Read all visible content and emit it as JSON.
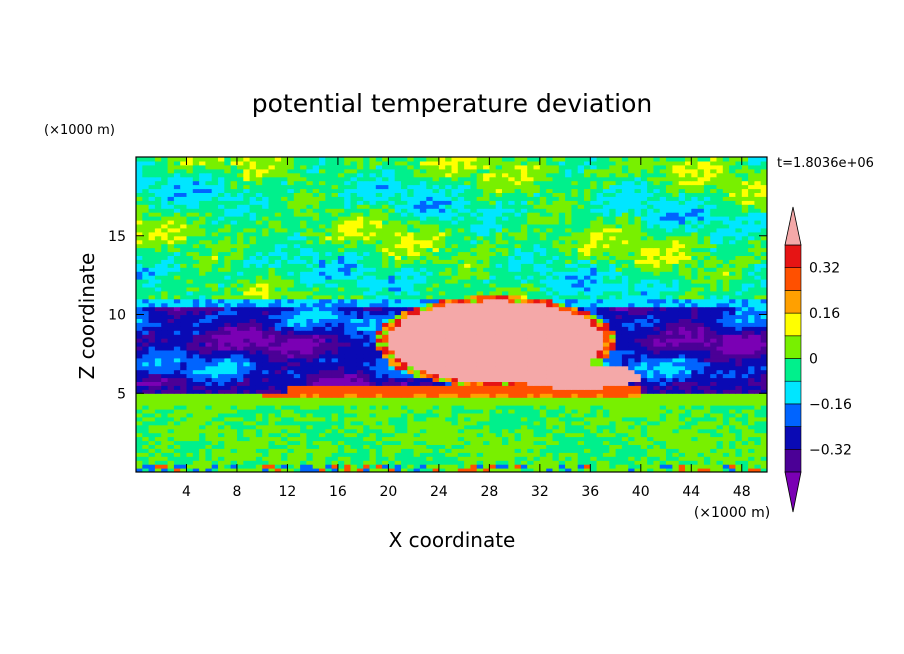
{
  "chart_data": {
    "type": "heatmap",
    "title": "potential temperature deviation",
    "xlabel": "X coordinate",
    "ylabel": "Z coordinate",
    "x_unit": "(×1000 m)",
    "y_unit": "(×1000 m)",
    "time_label": "t=1.8036e+06",
    "xlim": [
      0,
      50
    ],
    "ylim": [
      0,
      20
    ],
    "x_ticks": [
      4,
      8,
      12,
      16,
      20,
      24,
      28,
      32,
      36,
      40,
      44,
      48
    ],
    "y_ticks": [
      5,
      10,
      15
    ],
    "colorbar": {
      "levels": [
        -0.4,
        -0.32,
        -0.24,
        -0.16,
        -0.08,
        0,
        0.08,
        0.16,
        0.24,
        0.32,
        0.4
      ],
      "labeled_levels": [
        0.32,
        0.16,
        0,
        -0.16,
        -0.32
      ],
      "labels": [
        "0.32",
        "0.16",
        "0",
        "−0.16",
        "−0.32"
      ],
      "colors": [
        "#7a00b4",
        "#4b0096",
        "#0a0ab4",
        "#0064ff",
        "#00e6ff",
        "#00f08c",
        "#78f000",
        "#ffff00",
        "#ffa000",
        "#ff5000",
        "#e61414",
        "#f4a8a8"
      ]
    },
    "bands": [
      {
        "z": [
          0,
          0.5
        ],
        "level": "noise-low"
      },
      {
        "z": [
          0.5,
          4.2
        ],
        "level": "mixed-positive-small"
      },
      {
        "z": [
          4.2,
          5.2
        ],
        "level": "orange-red-positive"
      },
      {
        "z": [
          5.2,
          10.5
        ],
        "level": "negative-strong"
      },
      {
        "z": [
          10.5,
          20
        ],
        "level": "mixed-near-zero"
      }
    ],
    "anomaly": {
      "x_range": [
        19,
        39
      ],
      "z_range": [
        5,
        11.5
      ],
      "level": "above-max"
    }
  }
}
